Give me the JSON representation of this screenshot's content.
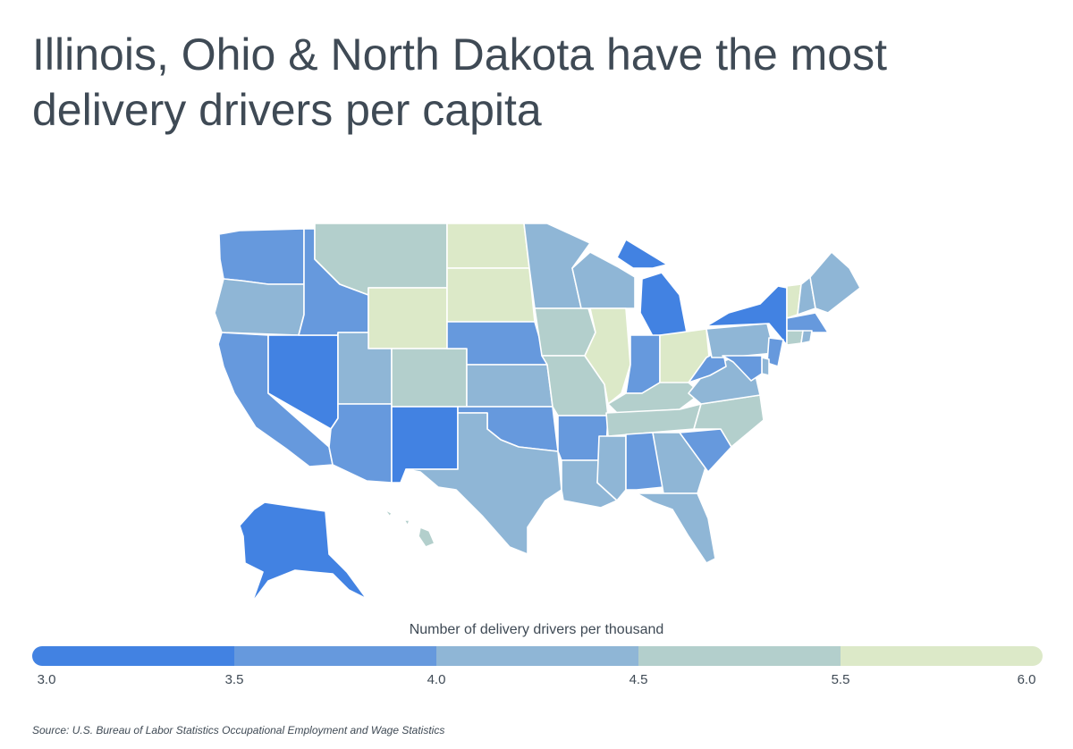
{
  "title": "Illinois, Ohio & North Dakota have the most delivery drivers per capita",
  "legend": {
    "title": "Number of delivery drivers per thousand",
    "ticks": [
      "3.0",
      "3.5",
      "4.0",
      "4.5",
      "5.5",
      "6.0"
    ],
    "bins": [
      {
        "range": "3.0–3.5",
        "color": "#4282e2"
      },
      {
        "range": "3.5–4.0",
        "color": "#6699dd"
      },
      {
        "range": "4.0–4.5",
        "color": "#8fb6d6"
      },
      {
        "range": "4.5–5.5",
        "color": "#b3cfcc"
      },
      {
        "range": "5.5–6.0",
        "color": "#dce9c8"
      }
    ]
  },
  "source": "Source:  U.S. Bureau of Labor Statistics Occupational Employment and Wage Statistics",
  "states": [
    {
      "name": "Washington",
      "bin": 1
    },
    {
      "name": "Oregon",
      "bin": 2
    },
    {
      "name": "California",
      "bin": 1
    },
    {
      "name": "Nevada",
      "bin": 0
    },
    {
      "name": "Idaho",
      "bin": 1
    },
    {
      "name": "Montana",
      "bin": 3
    },
    {
      "name": "Wyoming",
      "bin": 4
    },
    {
      "name": "Utah",
      "bin": 2
    },
    {
      "name": "Arizona",
      "bin": 1
    },
    {
      "name": "Colorado",
      "bin": 3
    },
    {
      "name": "New Mexico",
      "bin": 0
    },
    {
      "name": "North Dakota",
      "bin": 4
    },
    {
      "name": "South Dakota",
      "bin": 4
    },
    {
      "name": "Nebraska",
      "bin": 1
    },
    {
      "name": "Kansas",
      "bin": 2
    },
    {
      "name": "Oklahoma",
      "bin": 1
    },
    {
      "name": "Texas",
      "bin": 2
    },
    {
      "name": "Minnesota",
      "bin": 2
    },
    {
      "name": "Iowa",
      "bin": 3
    },
    {
      "name": "Missouri",
      "bin": 3
    },
    {
      "name": "Arkansas",
      "bin": 1
    },
    {
      "name": "Louisiana",
      "bin": 2
    },
    {
      "name": "Wisconsin",
      "bin": 2
    },
    {
      "name": "Illinois",
      "bin": 4
    },
    {
      "name": "Michigan",
      "bin": 0
    },
    {
      "name": "Indiana",
      "bin": 1
    },
    {
      "name": "Ohio",
      "bin": 4
    },
    {
      "name": "Kentucky",
      "bin": 3
    },
    {
      "name": "Tennessee",
      "bin": 3
    },
    {
      "name": "Mississippi",
      "bin": 2
    },
    {
      "name": "Alabama",
      "bin": 1
    },
    {
      "name": "Georgia",
      "bin": 2
    },
    {
      "name": "Florida",
      "bin": 2
    },
    {
      "name": "South Carolina",
      "bin": 1
    },
    {
      "name": "North Carolina",
      "bin": 3
    },
    {
      "name": "Virginia",
      "bin": 2
    },
    {
      "name": "West Virginia",
      "bin": 1
    },
    {
      "name": "Pennsylvania",
      "bin": 2
    },
    {
      "name": "New York",
      "bin": 0
    },
    {
      "name": "Vermont",
      "bin": 4
    },
    {
      "name": "New Hampshire",
      "bin": 2
    },
    {
      "name": "Maine",
      "bin": 2
    },
    {
      "name": "Massachusetts",
      "bin": 1
    },
    {
      "name": "Connecticut",
      "bin": 3
    },
    {
      "name": "Rhode Island",
      "bin": 2
    },
    {
      "name": "New Jersey",
      "bin": 1
    },
    {
      "name": "Delaware",
      "bin": 2
    },
    {
      "name": "Maryland",
      "bin": 1
    },
    {
      "name": "Alaska",
      "bin": 0
    },
    {
      "name": "Hawaii",
      "bin": 3
    }
  ]
}
